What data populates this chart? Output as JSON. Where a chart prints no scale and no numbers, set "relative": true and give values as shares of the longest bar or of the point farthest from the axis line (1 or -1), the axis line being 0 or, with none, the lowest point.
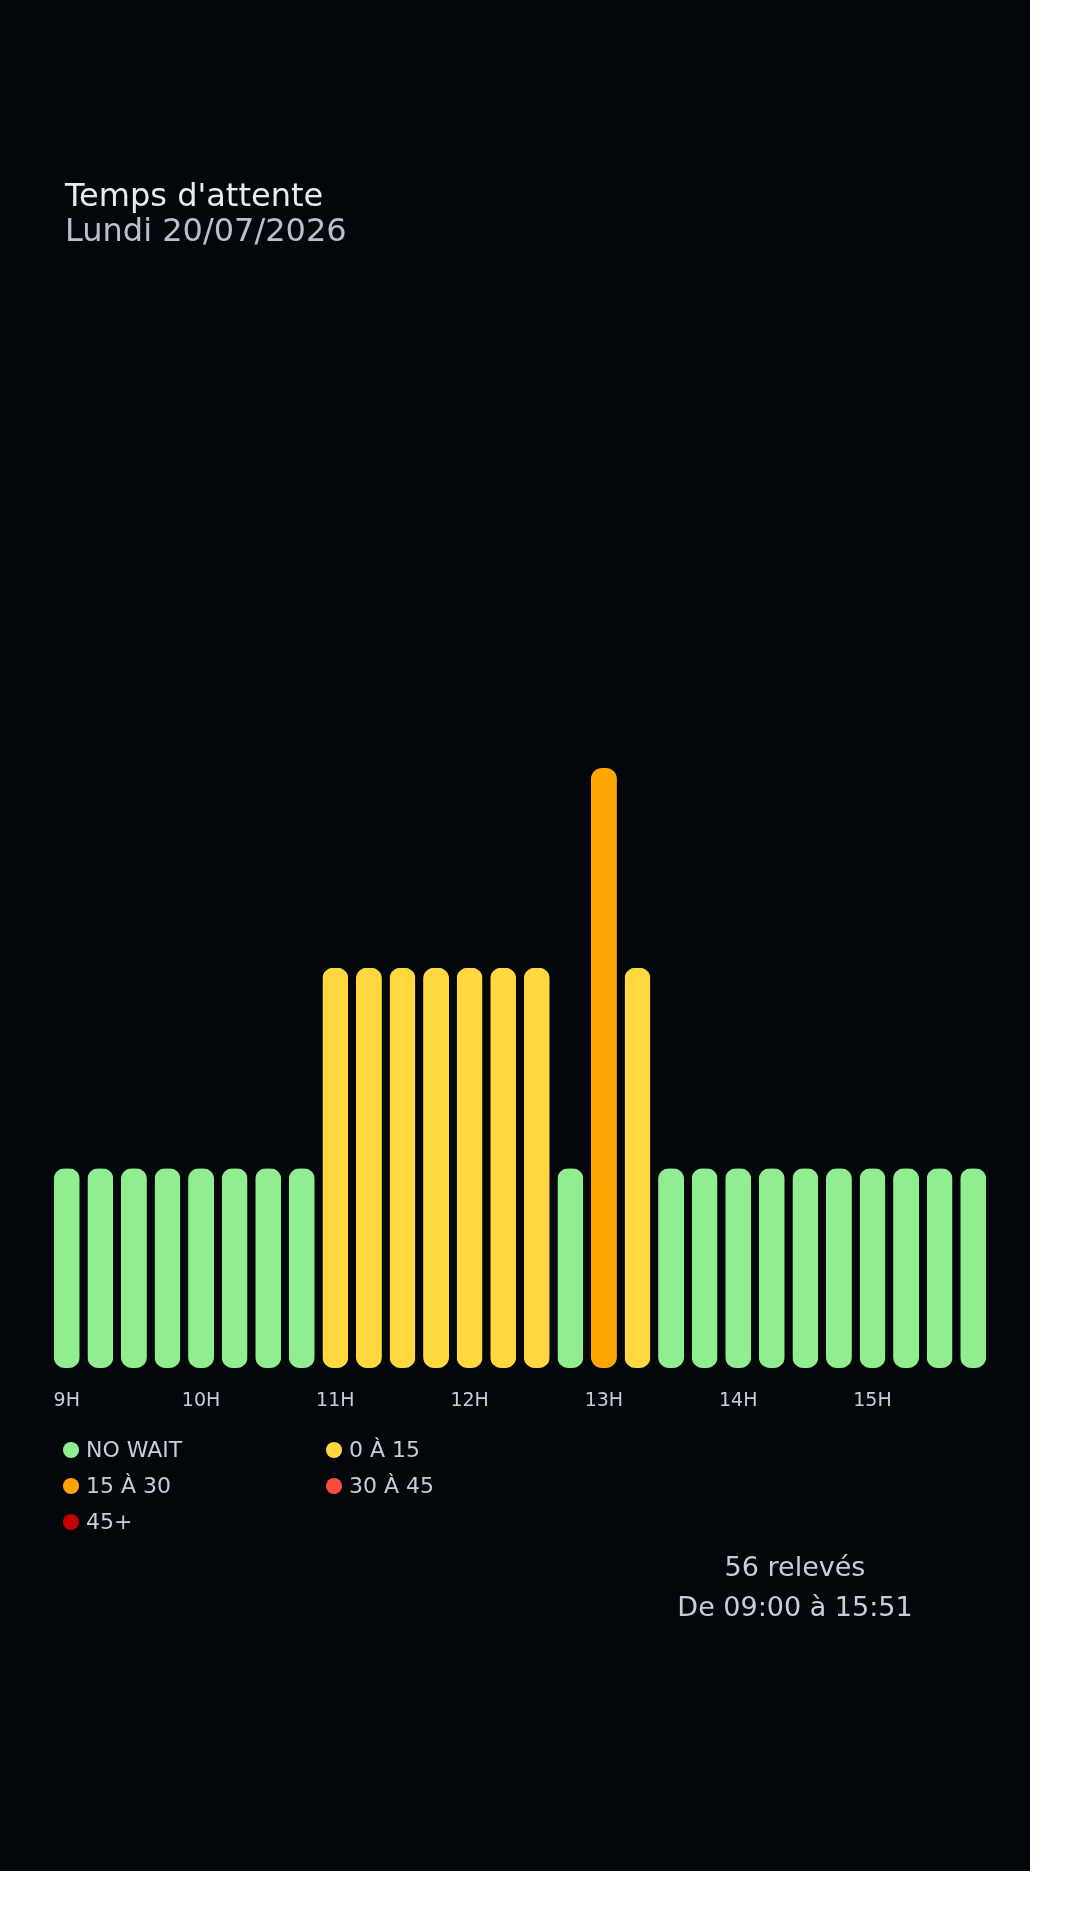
{
  "chart_data": {
    "type": "bar",
    "title": "Temps d'attente",
    "subtitle": "Lundi 20/07/2026",
    "categories": [
      "9H",
      null,
      null,
      null,
      "10H",
      null,
      null,
      null,
      "11H",
      null,
      null,
      null,
      "12H",
      null,
      null,
      null,
      "13H",
      null,
      null,
      null,
      "14H",
      null,
      null,
      null,
      "15H",
      null,
      null,
      null
    ],
    "series": [
      {
        "name": "NO WAIT",
        "color": "#90ee90",
        "values": [
          0.333,
          0.333,
          0.333,
          0.333,
          0.333,
          0.333,
          0.333,
          0.333,
          null,
          null,
          null,
          null,
          null,
          null,
          null,
          0.333,
          null,
          null,
          0.333,
          0.333,
          0.333,
          0.333,
          0.333,
          0.333,
          0.333,
          0.333,
          0.333,
          0.333
        ]
      },
      {
        "name": "0 À 15",
        "color": "#ffd740",
        "values": [
          null,
          null,
          null,
          null,
          null,
          null,
          null,
          null,
          0.667,
          0.667,
          0.667,
          0.667,
          0.667,
          0.667,
          0.667,
          null,
          null,
          0.667,
          null,
          null,
          null,
          null,
          null,
          null,
          null,
          null,
          null,
          null
        ]
      },
      {
        "name": "15 À 30",
        "color": "#ffa500",
        "values": [
          null,
          null,
          null,
          null,
          null,
          null,
          null,
          null,
          null,
          null,
          null,
          null,
          null,
          null,
          null,
          null,
          1,
          null,
          null,
          null,
          null,
          null,
          null,
          null,
          null,
          null,
          null,
          null
        ]
      },
      {
        "name": "30 À 45",
        "color": "#ff4b3e",
        "values": [
          null,
          null,
          null,
          null,
          null,
          null,
          null,
          null,
          null,
          null,
          null,
          null,
          null,
          null,
          null,
          null,
          null,
          null,
          null,
          null,
          null,
          null,
          null,
          null,
          null,
          null,
          null,
          null
        ]
      },
      {
        "name": "45+",
        "color": "#c00000",
        "values": [
          null,
          null,
          null,
          null,
          null,
          null,
          null,
          null,
          null,
          null,
          null,
          null,
          null,
          null,
          null,
          null,
          null,
          null,
          null,
          null,
          null,
          null,
          null,
          null,
          null,
          null,
          null,
          null
        ]
      }
    ],
    "relative": true,
    "grid": false,
    "legend": "bottom",
    "annotations": [
      "56 relevés",
      "De 09:00 à 15:51"
    ]
  }
}
